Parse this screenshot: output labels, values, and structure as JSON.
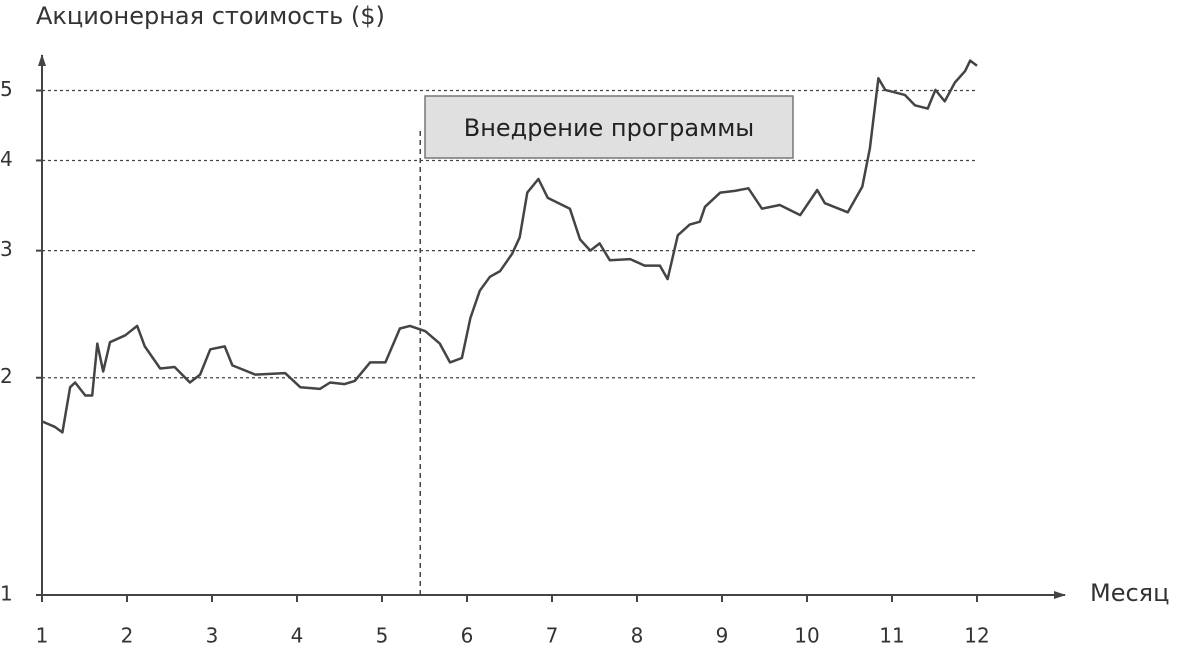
{
  "chart_data": {
    "type": "line",
    "y_label": "Акционерная стоимость ($)",
    "x_label": "Месяц",
    "xlim": [
      1,
      12
    ],
    "xticks": [
      1,
      2,
      3,
      4,
      5,
      6,
      7,
      8,
      9,
      10,
      11,
      12
    ],
    "ylim": [
      1,
      5.6
    ],
    "yticks": [
      1,
      2,
      3,
      4,
      5
    ],
    "log_y": true,
    "grid": true,
    "annotation": {
      "text": "Внедрение программы",
      "x": 5.45
    },
    "series": [
      {
        "color": "#444444",
        "x": [
          1.0,
          1.15,
          1.24,
          1.33,
          1.39,
          1.51,
          1.59,
          1.65,
          1.72,
          1.8,
          1.98,
          2.12,
          2.21,
          2.39,
          2.56,
          2.74,
          2.86,
          2.98,
          3.15,
          3.24,
          3.51,
          3.86,
          4.04,
          4.27,
          4.39,
          4.56,
          4.68,
          4.86,
          5.04,
          5.21,
          5.33,
          5.51,
          5.68,
          5.8,
          5.94,
          6.04,
          6.15,
          6.27,
          6.39,
          6.53,
          6.62,
          6.71,
          6.84,
          6.95,
          7.21,
          7.33,
          7.45,
          7.56,
          7.68,
          7.92,
          8.09,
          8.27,
          8.36,
          8.48,
          8.62,
          8.74,
          8.8,
          8.98,
          9.15,
          9.31,
          9.47,
          9.68,
          9.92,
          10.12,
          10.21,
          10.48,
          10.65,
          10.74,
          10.84,
          10.92,
          11.15,
          11.27,
          11.42,
          11.51,
          11.62,
          11.74,
          11.86,
          11.92,
          12.0
        ],
        "values": [
          1.74,
          1.71,
          1.68,
          1.94,
          1.97,
          1.89,
          1.89,
          2.23,
          2.04,
          2.24,
          2.29,
          2.36,
          2.21,
          2.06,
          2.07,
          1.97,
          2.02,
          2.19,
          2.21,
          2.08,
          2.02,
          2.03,
          1.94,
          1.93,
          1.97,
          1.96,
          1.98,
          2.1,
          2.1,
          2.34,
          2.36,
          2.32,
          2.23,
          2.1,
          2.13,
          2.42,
          2.64,
          2.76,
          2.81,
          2.97,
          3.13,
          3.61,
          3.77,
          3.55,
          3.43,
          3.11,
          3.0,
          3.07,
          2.91,
          2.92,
          2.86,
          2.86,
          2.74,
          3.15,
          3.26,
          3.29,
          3.45,
          3.61,
          3.63,
          3.66,
          3.43,
          3.47,
          3.36,
          3.64,
          3.49,
          3.39,
          3.68,
          4.16,
          5.2,
          5.01,
          4.93,
          4.77,
          4.72,
          5.01,
          4.83,
          5.13,
          5.32,
          5.5,
          5.41
        ]
      }
    ]
  }
}
